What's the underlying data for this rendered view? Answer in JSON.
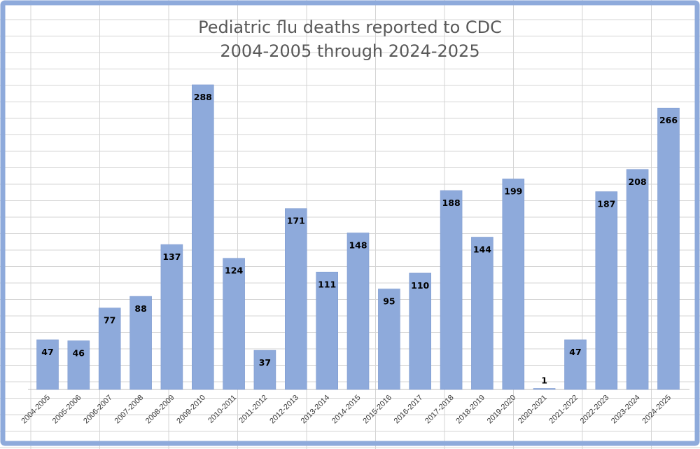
{
  "chart_data": {
    "type": "bar",
    "title_lines": [
      "Pediatric flu deaths reported to CDC",
      "2004-2005 through 2024-2025"
    ],
    "xlabel": "",
    "ylabel": "",
    "categories": [
      "2004-2005",
      "2005-2006",
      "2006-2007",
      "2007-2008",
      "2008-2009",
      "2009-2010",
      "2010-2011",
      "2011-2012",
      "2012-2013",
      "2013-2014",
      "2014-2015",
      "2015-2016",
      "2016-2017",
      "2017-2018",
      "2018-2019",
      "2019-2020",
      "2020-2021",
      "2021-2022",
      "2022-2023",
      "2023-2024",
      "2024-2025"
    ],
    "values": [
      47,
      46,
      77,
      88,
      137,
      288,
      124,
      37,
      171,
      111,
      148,
      95,
      110,
      188,
      144,
      199,
      1,
      47,
      187,
      208,
      266
    ],
    "data_labels": [
      "47",
      "46",
      "77",
      "88",
      "137",
      "288",
      "124",
      "37",
      "171",
      "111",
      "148",
      "95",
      "110",
      "188",
      "144",
      "199",
      "1",
      "47",
      "187",
      "208",
      "266"
    ],
    "ylim": [
      0,
      300
    ],
    "grid": true,
    "legend": "none",
    "colors": {
      "bar": "#8eaadb",
      "frame": "#8eaadb",
      "grid": "#d4d4d4",
      "title": "#595959"
    }
  }
}
